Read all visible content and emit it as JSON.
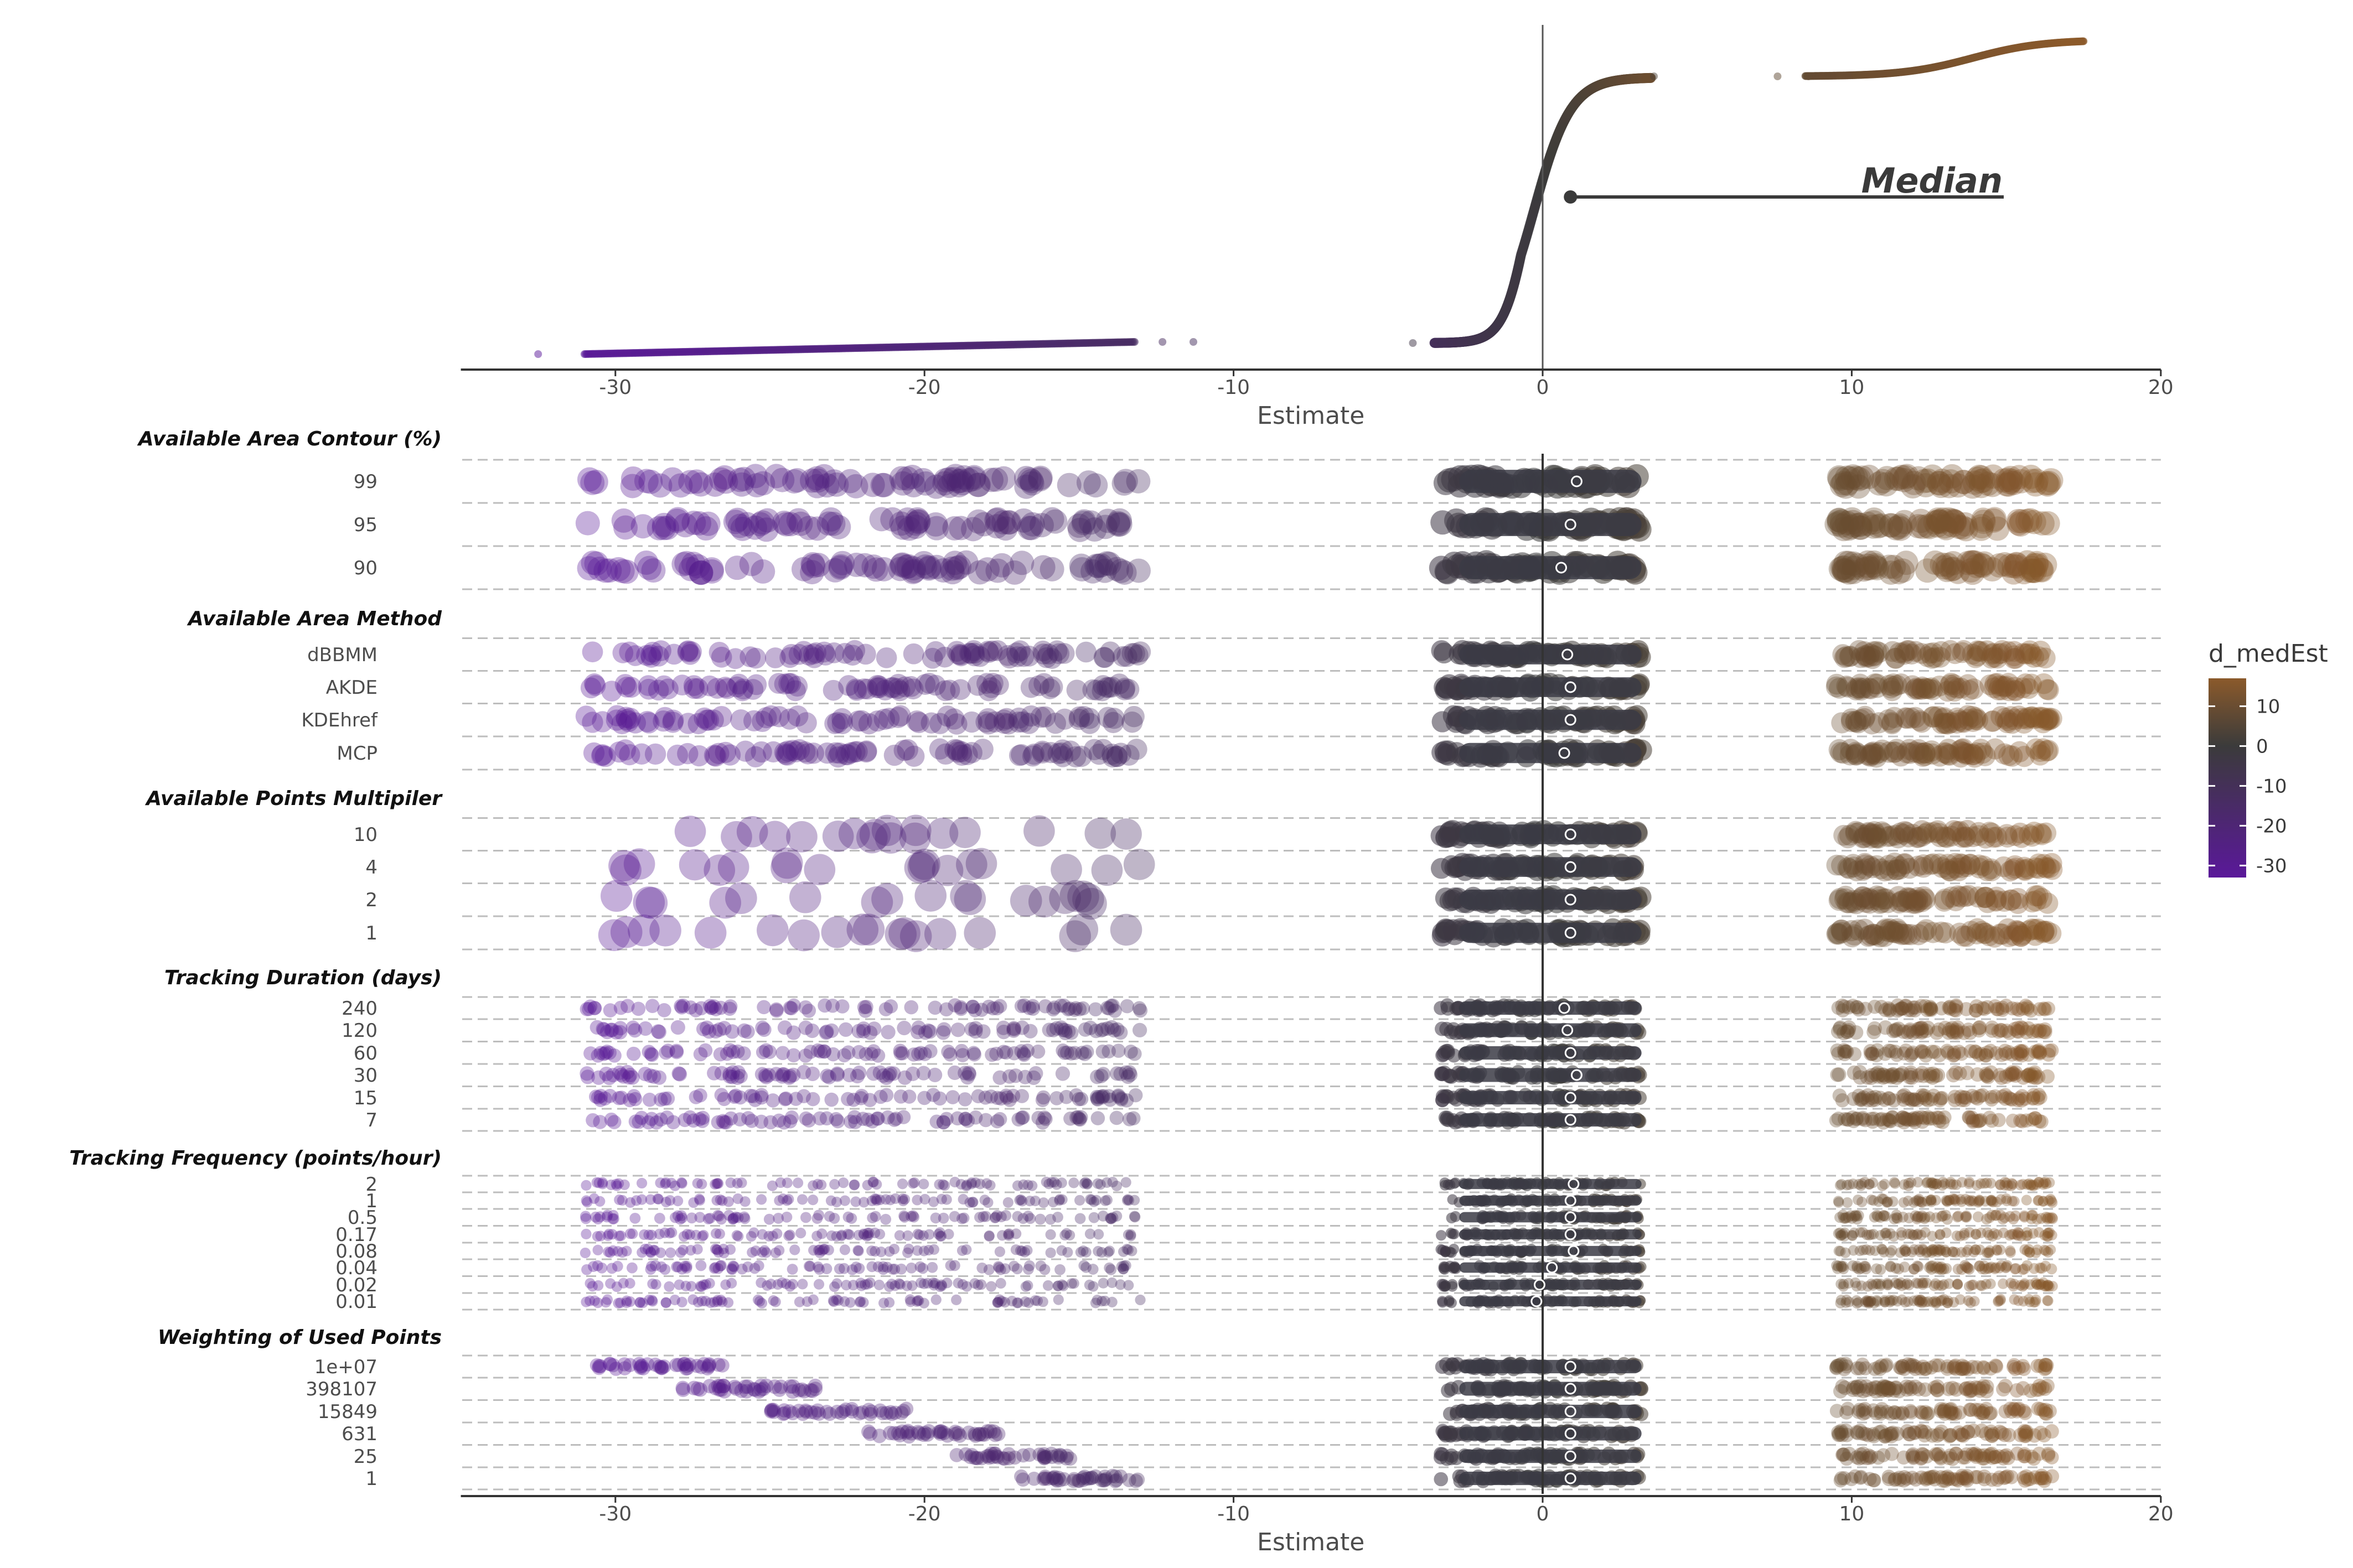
{
  "chart_data": {
    "type": "scatter",
    "xlabel": "Estimate",
    "xlim": [
      -35,
      20
    ],
    "xticks": [
      -30,
      -20,
      -10,
      0,
      10,
      20
    ],
    "top_panel": {
      "description_type": "ranked estimates (specification curve)",
      "annotation": "Median",
      "median_estimate": 0.9,
      "segments": [
        {
          "x_start": -31,
          "x_end": -13.2,
          "color_low": -31,
          "color_high": -13
        },
        {
          "x_start": -3.5,
          "x_end": 3.5,
          "color_low": -3,
          "color_high": 3
        },
        {
          "x_start": 8.5,
          "x_end": 17.5,
          "color_low": 8,
          "color_high": 17
        }
      ]
    },
    "groups": [
      {
        "title": "Available Area Contour (%)",
        "rows": [
          {
            "label": "99",
            "median": 1.1
          },
          {
            "label": "95",
            "median": 0.9
          },
          {
            "label": "90",
            "median": 0.6
          }
        ]
      },
      {
        "title": "Available Area Method",
        "rows": [
          {
            "label": "dBBMM",
            "median": 0.8
          },
          {
            "label": "AKDE",
            "median": 0.9
          },
          {
            "label": "KDEhref",
            "median": 0.9
          },
          {
            "label": "MCP",
            "median": 0.7
          }
        ]
      },
      {
        "title": "Available Points Multipiler",
        "rows": [
          {
            "label": "10",
            "median": 0.9
          },
          {
            "label": "4",
            "median": 0.9
          },
          {
            "label": "2",
            "median": 0.9
          },
          {
            "label": "1",
            "median": 0.9
          }
        ]
      },
      {
        "title": "Tracking Duration (days)",
        "rows": [
          {
            "label": "240",
            "median": 0.7
          },
          {
            "label": "120",
            "median": 0.8
          },
          {
            "label": "60",
            "median": 0.9
          },
          {
            "label": "30",
            "median": 1.1
          },
          {
            "label": "15",
            "median": 0.9
          },
          {
            "label": "7",
            "median": 0.9
          }
        ]
      },
      {
        "title": "Tracking Frequency (points/hour)",
        "rows": [
          {
            "label": "2",
            "median": 1.0
          },
          {
            "label": "1",
            "median": 0.9
          },
          {
            "label": "0.5",
            "median": 0.9
          },
          {
            "label": "0.17",
            "median": 0.9
          },
          {
            "label": "0.08",
            "median": 1.0
          },
          {
            "label": "0.04",
            "median": 0.3
          },
          {
            "label": "0.02",
            "median": -0.1
          },
          {
            "label": "0.01",
            "median": -0.2
          }
        ]
      },
      {
        "title": "Weighting of Used Points",
        "rows": [
          {
            "label": "1e+07",
            "median": 0.9
          },
          {
            "label": "398107",
            "median": 0.9
          },
          {
            "label": "15849",
            "median": 0.9
          },
          {
            "label": "631",
            "median": 0.9
          },
          {
            "label": "25",
            "median": 0.9
          },
          {
            "label": "1",
            "median": 0.9
          }
        ]
      }
    ],
    "legend": {
      "title": "d_medEst",
      "ticks": [
        10,
        0,
        -10,
        -20,
        -30
      ],
      "range": [
        -33,
        17
      ],
      "colors": {
        "low": "#5a189a",
        "mid": "#3b3b3b",
        "high": "#8b5a2b"
      }
    }
  }
}
